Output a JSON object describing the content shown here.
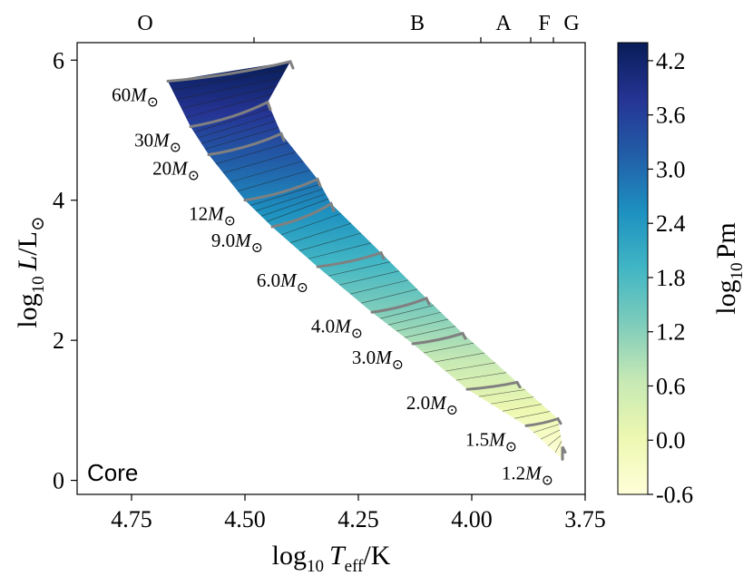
{
  "chart_data": {
    "type": "heatmap",
    "title": "",
    "xlabel": {
      "base": "log",
      "sub": "10",
      "var": "T",
      "varsub": "eff",
      "unit": "/K"
    },
    "ylabel": {
      "base": "log",
      "sub": "10",
      "var": "L",
      "unit": "/L",
      "sun": "⊙"
    },
    "xlim": [
      4.87,
      3.75
    ],
    "ylim": [
      -0.2,
      6.25
    ],
    "x_ticks": [
      4.75,
      4.5,
      4.25,
      4.0,
      3.75
    ],
    "x_tick_labels": [
      "4.75",
      "4.50",
      "4.25",
      "4.00",
      "3.75"
    ],
    "y_ticks": [
      0,
      2,
      4,
      6
    ],
    "y_tick_labels": [
      "0",
      "2",
      "4",
      "6"
    ],
    "spectral_classes": [
      {
        "label": "O",
        "x": 4.72
      },
      {
        "label": "B",
        "x": 4.12
      },
      {
        "label": "A",
        "x": 3.93
      },
      {
        "label": "F",
        "x": 3.84
      },
      {
        "label": "G",
        "x": 3.78
      }
    ],
    "spectral_boundaries": [
      4.48,
      3.98,
      3.87,
      3.82
    ],
    "annotation": "Core",
    "tracks": [
      {
        "label": "60M",
        "sun": "⊙",
        "zams": [
          4.67,
          5.7
        ],
        "tams": [
          4.4,
          5.98
        ]
      },
      {
        "label": "30M",
        "sun": "⊙",
        "zams": [
          4.62,
          5.05
        ],
        "tams": [
          4.45,
          5.4
        ]
      },
      {
        "label": "20M",
        "sun": "⊙",
        "zams": [
          4.58,
          4.65
        ],
        "tams": [
          4.42,
          4.95
        ]
      },
      {
        "label": "12M",
        "sun": "⊙",
        "zams": [
          4.5,
          4.0
        ],
        "tams": [
          4.34,
          4.3
        ]
      },
      {
        "label": "9.0M",
        "sun": "⊙",
        "zams": [
          4.44,
          3.62
        ],
        "tams": [
          4.31,
          3.95
        ]
      },
      {
        "label": "6.0M",
        "sun": "⊙",
        "zams": [
          4.34,
          3.05
        ],
        "tams": [
          4.2,
          3.25
        ]
      },
      {
        "label": "4.0M",
        "sun": "⊙",
        "zams": [
          4.22,
          2.4
        ],
        "tams": [
          4.1,
          2.6
        ]
      },
      {
        "label": "3.0M",
        "sun": "⊙",
        "zams": [
          4.13,
          1.95
        ],
        "tams": [
          4.02,
          2.1
        ]
      },
      {
        "label": "2.0M",
        "sun": "⊙",
        "zams": [
          4.01,
          1.3
        ],
        "tams": [
          3.9,
          1.4
        ]
      },
      {
        "label": "1.5M",
        "sun": "⊙",
        "zams": [
          3.88,
          0.78
        ],
        "tams": [
          3.81,
          0.88
        ]
      },
      {
        "label": "1.2M",
        "sun": "⊙",
        "zams": [
          3.8,
          0.3
        ],
        "tams": [
          3.8,
          0.48
        ]
      }
    ],
    "colorbar": {
      "label": {
        "base": "log",
        "sub": "10",
        "var": "Pm"
      },
      "range": [
        -0.6,
        4.4
      ],
      "ticks": [
        4.2,
        3.6,
        3.0,
        2.4,
        1.8,
        1.2,
        0.6,
        0.0,
        -0.6
      ],
      "tick_labels": [
        "4.2",
        "3.6",
        "3.0",
        "2.4",
        "1.8",
        "1.2",
        "0.6",
        "0.0",
        "-0.6"
      ],
      "colormap": [
        "#ffffd9",
        "#edf8b1",
        "#c7e9b4",
        "#7fcdbb",
        "#41b6c4",
        "#1d91c0",
        "#225ea8",
        "#253494",
        "#081d58"
      ]
    }
  }
}
